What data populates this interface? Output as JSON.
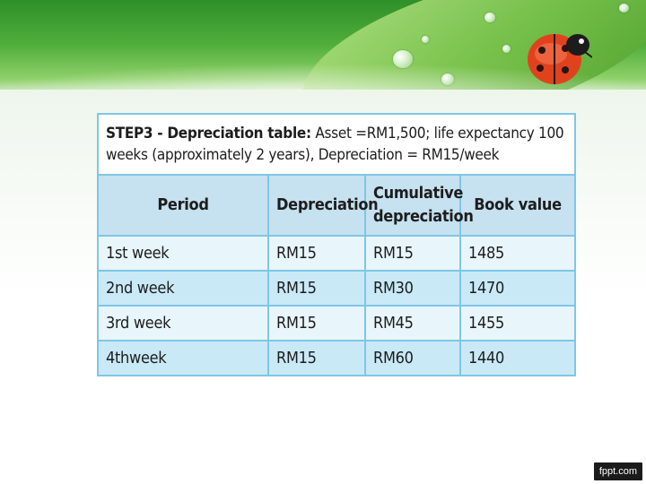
{
  "slide": {
    "table_title_bold": "STEP3 - Depreciation table:",
    "table_title_rest": " Asset =RM1,500;  life expectancy 100 weeks (approximately 2 years), Depreciation = RM15/week",
    "columns": [
      "Period",
      "Depreciation",
      "Cumulative depreciation",
      "Book value"
    ],
    "rows": [
      [
        "1st  week",
        "RM15",
        "RM15",
        "1485"
      ],
      [
        "2nd week",
        "RM15",
        "RM30",
        "1470"
      ],
      [
        "3rd week",
        "RM15",
        "RM45",
        "1455"
      ],
      [
        "4thweek",
        "RM15",
        "RM60",
        "1440"
      ]
    ],
    "colors": {
      "header_bg": "#c6e1ef",
      "row_light": "#e8f5fb",
      "row_dark": "#c9e9f7",
      "border": "#7fc6e6",
      "banner_green": "#4fae3a"
    }
  },
  "footer": {
    "brand": "fppt.com"
  },
  "decor": {
    "banner_image": "green-leaf-with-water-drops",
    "insect_icon": "ladybug-icon"
  }
}
